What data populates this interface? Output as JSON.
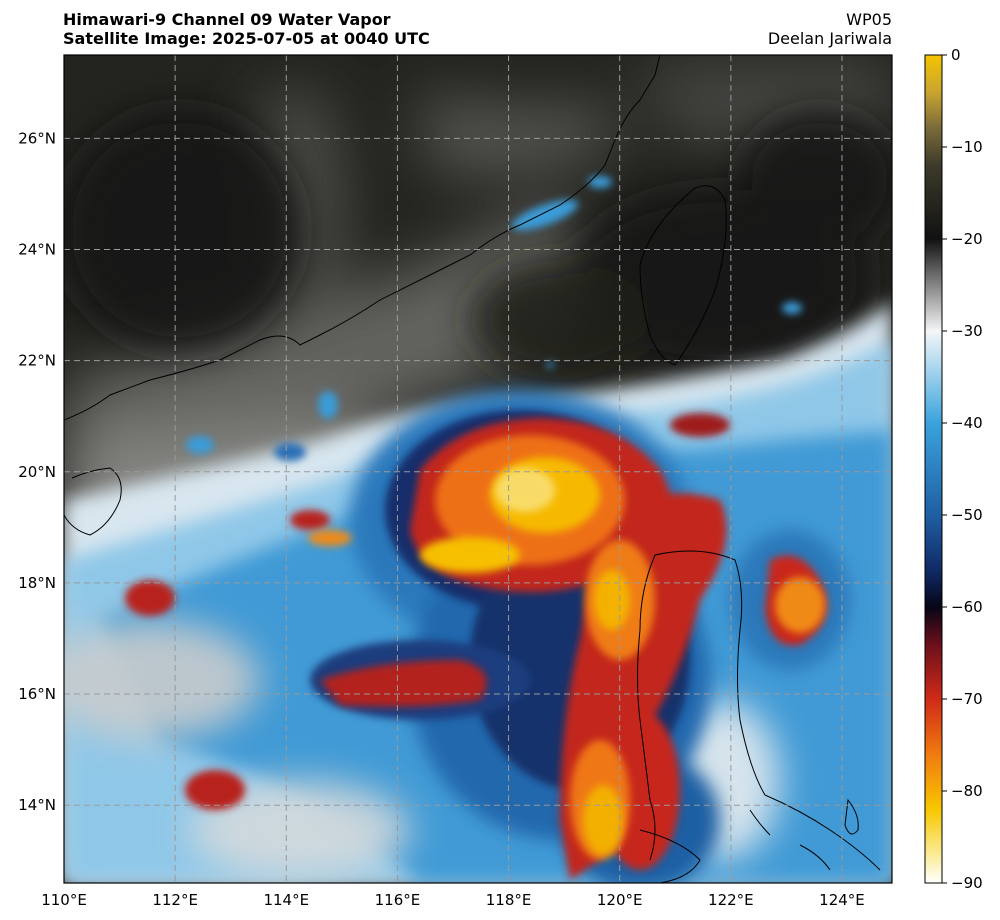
{
  "title": {
    "line1": "Himawari-9 Channel 09 Water Vapor",
    "line2": "Satellite Image: 2025-07-05 at 0040 UTC"
  },
  "storm_id": "WP05",
  "author": "Deelan Jariwala",
  "map": {
    "lon_ticks": [
      "110°E",
      "112°E",
      "114°E",
      "116°E",
      "118°E",
      "120°E",
      "122°E",
      "124°E"
    ],
    "lat_ticks": [
      "14°N",
      "16°N",
      "18°N",
      "20°N",
      "22°N",
      "24°N",
      "26°N"
    ],
    "lon_values": [
      110,
      112,
      114,
      116,
      118,
      120,
      122,
      124
    ],
    "lat_values": [
      14,
      16,
      18,
      20,
      22,
      24,
      26
    ],
    "lon_range": [
      110,
      124.9
    ],
    "lat_range": [
      12.6,
      27.5
    ],
    "gridlines": true,
    "coastlines": true
  },
  "colorbar": {
    "ticks": [
      "0",
      "−10",
      "−20",
      "−30",
      "−40",
      "−50",
      "−60",
      "−70",
      "−80",
      "−90"
    ],
    "values": [
      0,
      -10,
      -20,
      -30,
      -40,
      -50,
      -60,
      -70,
      -80,
      -90
    ],
    "range": [
      -90,
      0
    ],
    "stops": [
      {
        "v": 0,
        "color": "#f5c400"
      },
      {
        "v": -4,
        "color": "#c9a530"
      },
      {
        "v": -8,
        "color": "#7a6a3a"
      },
      {
        "v": -12,
        "color": "#3d3a2a"
      },
      {
        "v": -20,
        "color": "#111111"
      },
      {
        "v": -24,
        "color": "#6e6e6e"
      },
      {
        "v": -28,
        "color": "#c8c8c8"
      },
      {
        "v": -30,
        "color": "#f4f6f8"
      },
      {
        "v": -34,
        "color": "#a9d6ee"
      },
      {
        "v": -40,
        "color": "#3aa3dc"
      },
      {
        "v": -50,
        "color": "#1f5fa3"
      },
      {
        "v": -56,
        "color": "#102a66"
      },
      {
        "v": -60,
        "color": "#060616"
      },
      {
        "v": -64,
        "color": "#6a0f1c"
      },
      {
        "v": -70,
        "color": "#d02a18"
      },
      {
        "v": -76,
        "color": "#f07a10"
      },
      {
        "v": -82,
        "color": "#f8c700"
      },
      {
        "v": -87,
        "color": "#fbec9a"
      },
      {
        "v": -90,
        "color": "#ffffff"
      }
    ]
  },
  "palette": {
    "dry_dark": "#1b1b19",
    "dry_mid": "#3a3a36",
    "moist_gray": "#a8a8a8",
    "cloud_white": "#e9eef2",
    "cloud_blue": "#3a9cd8",
    "cloud_deep_blue": "#17407e",
    "deep_red": "#c9241a",
    "deep_orange": "#f07b12",
    "deep_yellow": "#f9c900",
    "gridline": "#9a9a9a",
    "coastline": "#000000"
  }
}
